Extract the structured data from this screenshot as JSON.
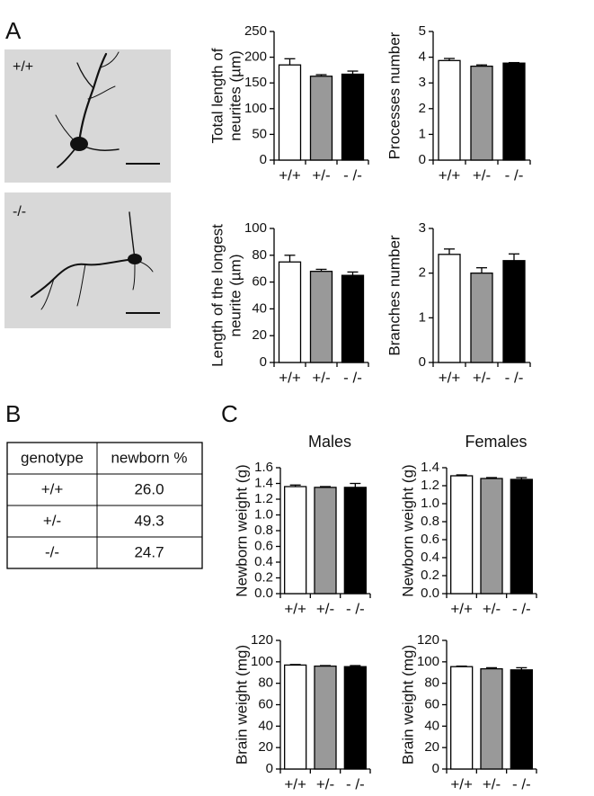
{
  "panels": [
    "A",
    "B",
    "C"
  ],
  "images": [
    {
      "label": "+/+"
    },
    {
      "label": "-/-"
    }
  ],
  "table": {
    "header": [
      "genotype",
      "newborn %"
    ],
    "rows": [
      [
        "+/+",
        "26.0"
      ],
      [
        "+/-",
        "49.3"
      ],
      [
        "-/-",
        "24.7"
      ]
    ]
  },
  "chart_data": [
    {
      "type": "bar",
      "ylabel": [
        "Total length of",
        "neurites (µm)"
      ],
      "categories": [
        "+/+",
        "+/-",
        "- /-"
      ],
      "values": [
        185,
        163,
        167
      ],
      "errors": [
        12,
        3,
        6
      ],
      "colors": [
        "#ffffff",
        "#999999",
        "#000000"
      ],
      "ylim": [
        0,
        250
      ],
      "yticks": [
        0,
        50,
        100,
        150,
        200,
        250
      ]
    },
    {
      "type": "bar",
      "ylabel": [
        "Processes number"
      ],
      "categories": [
        "+/+",
        "+/-",
        "- /-"
      ],
      "values": [
        3.87,
        3.65,
        3.77
      ],
      "errors": [
        0.08,
        0.05,
        0.02
      ],
      "colors": [
        "#ffffff",
        "#999999",
        "#000000"
      ],
      "ylim": [
        0,
        5
      ],
      "yticks": [
        0,
        1,
        2,
        3,
        4,
        5
      ]
    },
    {
      "type": "bar",
      "ylabel": [
        "Length of the longest",
        "neurite (µm)"
      ],
      "categories": [
        "+/+",
        "+/-",
        "- /-"
      ],
      "values": [
        75,
        68,
        65
      ],
      "errors": [
        5,
        1.5,
        2.5
      ],
      "colors": [
        "#ffffff",
        "#999999",
        "#000000"
      ],
      "ylim": [
        0,
        100
      ],
      "yticks": [
        0,
        20,
        40,
        60,
        80,
        100
      ]
    },
    {
      "type": "bar",
      "ylabel": [
        "Branches number"
      ],
      "categories": [
        "+/+",
        "+/-",
        "- /-"
      ],
      "values": [
        2.42,
        2.0,
        2.28
      ],
      "errors": [
        0.12,
        0.12,
        0.15
      ],
      "colors": [
        "#ffffff",
        "#999999",
        "#000000"
      ],
      "ylim": [
        0,
        3
      ],
      "yticks": [
        0,
        1,
        2,
        3
      ]
    },
    {
      "type": "bar",
      "title": "Males",
      "ylabel": [
        "Newborn weight (g)"
      ],
      "categories": [
        "+/+",
        "+/-",
        "- /-"
      ],
      "values": [
        1.36,
        1.35,
        1.35
      ],
      "errors": [
        0.02,
        0.01,
        0.05
      ],
      "colors": [
        "#ffffff",
        "#999999",
        "#000000"
      ],
      "ylim": [
        0,
        1.6
      ],
      "yticks": [
        {
          "value": 0,
          "label": "0.0"
        },
        0.2,
        0.4,
        0.6,
        0.8,
        {
          "value": 1,
          "label": "1.0"
        },
        1.2,
        1.4,
        1.6
      ]
    },
    {
      "type": "bar",
      "title": "Females",
      "ylabel": [
        "Newborn weight (g)"
      ],
      "categories": [
        "+/+",
        "+/-",
        "- /-"
      ],
      "values": [
        1.31,
        1.28,
        1.27
      ],
      "errors": [
        0.01,
        0.01,
        0.02
      ],
      "colors": [
        "#ffffff",
        "#999999",
        "#000000"
      ],
      "ylim": [
        0,
        1.4
      ],
      "yticks": [
        {
          "value": 0,
          "label": "0.0"
        },
        0.2,
        0.4,
        0.6,
        0.8,
        {
          "value": 1,
          "label": "1.0"
        },
        1.2,
        1.4
      ]
    },
    {
      "type": "bar",
      "ylabel": [
        "Brain weight (mg)"
      ],
      "categories": [
        "+/+",
        "+/-",
        "- /-"
      ],
      "values": [
        97,
        96,
        95.5
      ],
      "errors": [
        0.5,
        0.5,
        1
      ],
      "colors": [
        "#ffffff",
        "#999999",
        "#000000"
      ],
      "ylim": [
        0,
        120
      ],
      "yticks": [
        0,
        20,
        40,
        60,
        80,
        100,
        120
      ]
    },
    {
      "type": "bar",
      "ylabel": [
        "Brain weight (mg)"
      ],
      "categories": [
        "+/+",
        "+/-",
        "- /-"
      ],
      "values": [
        95.5,
        93.5,
        92.5
      ],
      "errors": [
        0.5,
        1,
        2
      ],
      "colors": [
        "#ffffff",
        "#999999",
        "#000000"
      ],
      "ylim": [
        0,
        120
      ],
      "yticks": [
        0,
        20,
        40,
        60,
        80,
        100,
        120
      ]
    }
  ]
}
